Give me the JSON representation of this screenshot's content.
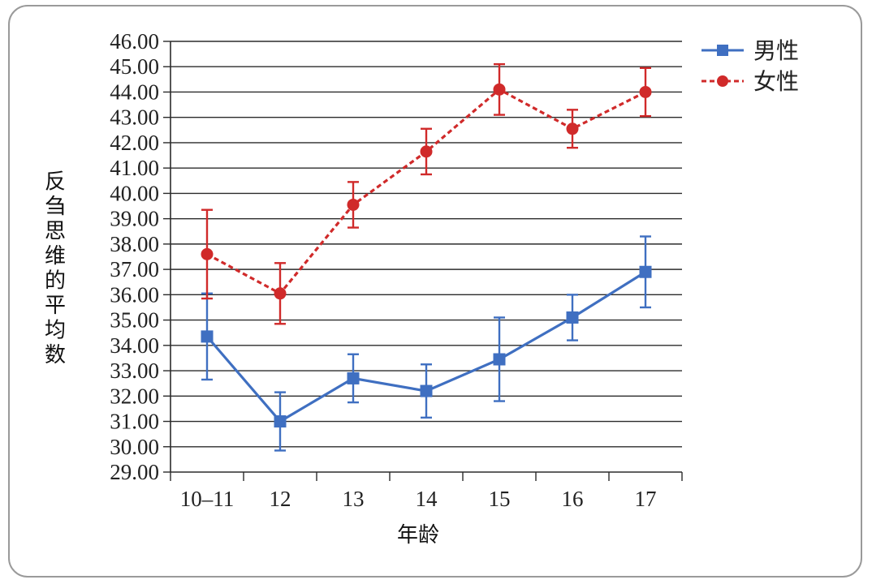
{
  "chart_data": {
    "type": "line",
    "xlabel": "年龄",
    "ylabel": "反刍思维的平均数",
    "categories": [
      "10–11",
      "12",
      "13",
      "14",
      "15",
      "16",
      "17"
    ],
    "ylim": [
      29,
      46
    ],
    "ytick_step": 1,
    "ytick_labels": [
      "29.00",
      "30.00",
      "31.00",
      "32.00",
      "33.00",
      "34.00",
      "35.00",
      "36.00",
      "37.00",
      "38.00",
      "39.00",
      "40.00",
      "41.00",
      "42.00",
      "43.00",
      "44.00",
      "45.00",
      "46.00"
    ],
    "grid": true,
    "legend_position": "top-right",
    "series": [
      {
        "name": "男性",
        "color": "#3f6fc1",
        "line_style": "solid",
        "marker": "square",
        "values": [
          34.35,
          31.0,
          32.7,
          32.2,
          33.45,
          35.1,
          36.9
        ],
        "error": [
          1.7,
          1.15,
          0.95,
          1.05,
          1.65,
          0.9,
          1.4
        ]
      },
      {
        "name": "女性",
        "color": "#d02a2a",
        "line_style": "dashed",
        "marker": "circle",
        "values": [
          37.6,
          36.05,
          39.55,
          41.65,
          44.1,
          42.55,
          44.0
        ],
        "error": [
          1.75,
          1.2,
          0.9,
          0.9,
          1.0,
          0.75,
          0.95
        ]
      }
    ]
  }
}
